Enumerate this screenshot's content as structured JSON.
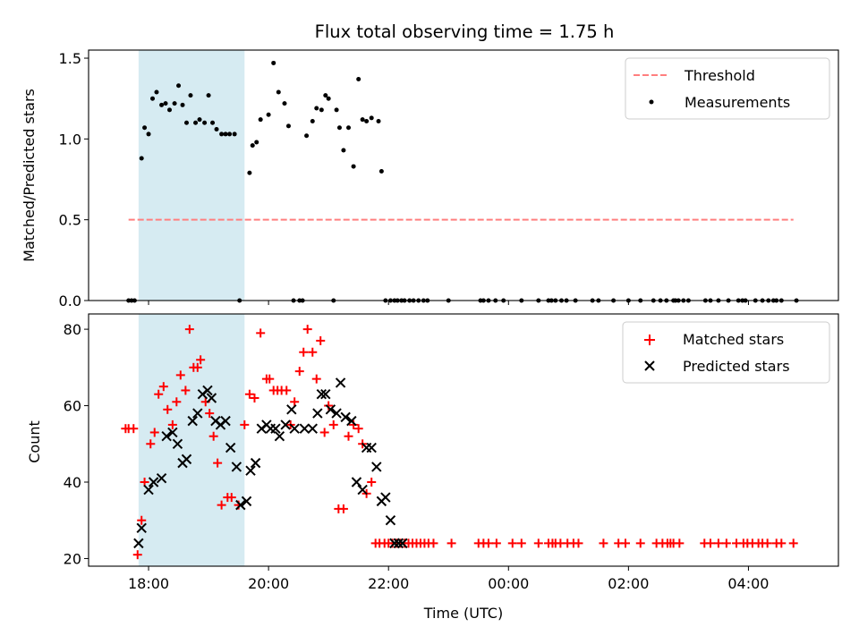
{
  "chart_data": [
    {
      "type": "scatter",
      "title": "Flux total observing time = 1.75 h",
      "xlabel": "",
      "ylabel": "Matched/Predicted stars",
      "xlim": [
        "17:00",
        "05:30"
      ],
      "ylim": [
        0,
        1.55
      ],
      "x_tick_labels": [
        "18:00",
        "20:00",
        "22:00",
        "00:00",
        "02:00",
        "04:00"
      ],
      "show_x_tick_labels": false,
      "y_ticks": [
        0.0,
        0.5,
        1.0,
        1.5
      ],
      "y_tick_labels": [
        "0.0",
        "0.5",
        "1.0",
        "1.5"
      ],
      "grid": false,
      "legend": "top-right",
      "shaded_span": {
        "start": "17:50",
        "end": "19:36",
        "color": "#add8e6"
      },
      "threshold": {
        "name": "Threshold",
        "value": 0.5,
        "from": "17:40",
        "to": "04:45",
        "color": "#ff7f7f",
        "style": "dashed"
      },
      "series": [
        {
          "name": "Measurements",
          "color": "#000000",
          "marker": "dot",
          "x": [
            "17:40",
            "17:43",
            "17:46",
            "17:53",
            "17:56",
            "18:00",
            "18:04",
            "18:08",
            "18:13",
            "18:17",
            "18:21",
            "18:26",
            "18:30",
            "18:34",
            "18:38",
            "18:42",
            "18:47",
            "18:51",
            "18:56",
            "19:00",
            "19:04",
            "19:08",
            "19:13",
            "19:17",
            "19:21",
            "19:26",
            "19:31",
            "19:41",
            "19:44",
            "19:48",
            "19:52",
            "20:00",
            "20:05",
            "20:10",
            "20:16",
            "20:20",
            "20:25",
            "20:31",
            "20:34",
            "20:38",
            "20:44",
            "20:48",
            "20:53",
            "20:57",
            "21:00",
            "21:05",
            "21:08",
            "21:11",
            "21:15",
            "21:20",
            "21:25",
            "21:30",
            "21:34",
            "21:38",
            "21:43",
            "21:50",
            "21:53",
            "21:57",
            "22:02",
            "22:06",
            "22:09",
            "22:13",
            "22:16",
            "22:21",
            "22:25",
            "22:30",
            "22:35",
            "22:39",
            "23:00",
            "23:32",
            "23:35",
            "23:40",
            "23:47",
            "23:55",
            "00:13",
            "00:30",
            "00:40",
            "00:43",
            "00:47",
            "00:53",
            "00:58",
            "01:07",
            "01:24",
            "01:30",
            "01:45",
            "02:00",
            "02:12",
            "02:25",
            "02:32",
            "02:38",
            "02:45",
            "02:47",
            "02:50",
            "02:55",
            "03:00",
            "03:17",
            "03:22",
            "03:30",
            "03:40",
            "03:50",
            "03:54",
            "03:57",
            "04:07",
            "04:14",
            "04:20",
            "04:25",
            "04:28",
            "04:33",
            "04:48"
          ],
          "y": [
            0,
            0,
            0,
            0.88,
            1.07,
            1.03,
            1.25,
            1.29,
            1.21,
            1.22,
            1.18,
            1.22,
            1.33,
            1.21,
            1.1,
            1.27,
            1.1,
            1.12,
            1.1,
            1.27,
            1.1,
            1.06,
            1.03,
            1.03,
            1.03,
            1.03,
            0,
            0.79,
            0.96,
            0.98,
            1.12,
            1.15,
            1.47,
            1.29,
            1.22,
            1.08,
            0,
            0,
            0,
            1.02,
            1.11,
            1.19,
            1.18,
            1.27,
            1.25,
            0,
            1.18,
            1.07,
            0.93,
            1.07,
            0.83,
            1.37,
            1.12,
            1.11,
            1.13,
            1.11,
            0.8,
            0,
            0,
            0,
            0,
            0,
            0,
            0,
            0,
            0,
            0,
            0,
            0,
            0,
            0,
            0,
            0,
            0,
            0,
            0,
            0,
            0,
            0,
            0,
            0,
            0,
            0,
            0,
            0,
            0,
            0,
            0,
            0,
            0,
            0,
            0,
            0,
            0,
            0,
            0,
            0,
            0,
            0,
            0,
            0,
            0,
            0,
            0,
            0,
            0,
            0,
            0,
            0
          ]
        }
      ]
    },
    {
      "type": "scatter",
      "title": "",
      "xlabel": "Time (UTC)",
      "ylabel": "Count",
      "xlim": [
        "17:00",
        "05:30"
      ],
      "ylim": [
        18,
        84
      ],
      "x_tick_labels": [
        "18:00",
        "20:00",
        "22:00",
        "00:00",
        "02:00",
        "04:00"
      ],
      "show_x_tick_labels": true,
      "y_ticks": [
        20,
        40,
        60,
        80
      ],
      "y_tick_labels": [
        "20",
        "40",
        "60",
        "80"
      ],
      "grid": false,
      "legend": "top-right",
      "shaded_span": {
        "start": "17:50",
        "end": "19:36",
        "color": "#add8e6"
      },
      "series": [
        {
          "name": "Matched stars",
          "color": "#ff0000",
          "marker": "plus",
          "x": [
            "17:37",
            "17:40",
            "17:45",
            "17:49",
            "17:53",
            "17:56",
            "18:02",
            "18:06",
            "18:10",
            "18:15",
            "18:19",
            "18:24",
            "18:28",
            "18:32",
            "18:37",
            "18:41",
            "18:45",
            "18:49",
            "18:52",
            "18:57",
            "19:01",
            "19:05",
            "19:09",
            "19:13",
            "19:19",
            "19:23",
            "19:30",
            "19:36",
            "19:41",
            "19:46",
            "19:52",
            "19:58",
            "20:01",
            "20:05",
            "20:09",
            "20:13",
            "20:18",
            "20:22",
            "20:26",
            "20:31",
            "20:35",
            "20:39",
            "20:44",
            "20:48",
            "20:52",
            "20:56",
            "21:00",
            "21:05",
            "21:10",
            "21:15",
            "21:20",
            "21:25",
            "21:30",
            "21:34",
            "21:38",
            "21:43",
            "21:47",
            "21:51",
            "21:56",
            "22:00",
            "22:04",
            "22:08",
            "22:12",
            "22:16",
            "22:20",
            "22:24",
            "22:28",
            "22:32",
            "22:36",
            "22:40",
            "22:45",
            "23:03",
            "23:30",
            "23:35",
            "23:40",
            "23:48",
            "00:04",
            "00:13",
            "00:30",
            "00:40",
            "00:44",
            "00:47",
            "00:52",
            "00:59",
            "01:05",
            "01:10",
            "01:35",
            "01:50",
            "01:57",
            "02:12",
            "02:28",
            "02:34",
            "02:39",
            "02:42",
            "02:45",
            "02:51",
            "03:16",
            "03:22",
            "03:30",
            "03:38",
            "03:48",
            "03:55",
            "03:59",
            "04:04",
            "04:10",
            "04:14",
            "04:19",
            "04:28",
            "04:33",
            "04:45"
          ],
          "y": [
            54,
            54,
            54,
            21,
            30,
            40,
            50,
            53,
            63,
            65,
            59,
            55,
            61,
            68,
            64,
            80,
            70,
            70,
            72,
            61,
            58,
            52,
            45,
            34,
            36,
            36,
            34,
            55,
            63,
            62,
            79,
            67,
            67,
            64,
            64,
            64,
            64,
            55,
            61,
            69,
            74,
            80,
            74,
            67,
            77,
            53,
            60,
            55,
            33,
            33,
            52,
            55,
            54,
            50,
            37,
            40,
            24,
            24,
            24,
            24,
            24,
            24,
            24,
            24,
            24,
            24,
            24,
            24,
            24,
            24,
            24,
            24,
            24,
            24,
            24,
            24,
            24,
            24,
            24,
            24,
            24,
            24,
            24,
            24,
            24,
            24,
            24,
            24,
            24,
            24,
            24,
            24,
            24,
            24,
            24,
            24,
            24,
            24,
            24,
            24,
            24,
            24,
            24,
            24,
            24,
            24,
            24,
            24,
            24,
            24
          ]
        },
        {
          "name": "Predicted stars",
          "color": "#000000",
          "marker": "x",
          "x": [
            "17:50",
            "17:53",
            "18:00",
            "18:05",
            "18:13",
            "18:18",
            "18:24",
            "18:29",
            "18:34",
            "18:38",
            "18:44",
            "18:49",
            "18:54",
            "18:59",
            "19:03",
            "19:07",
            "19:12",
            "19:17",
            "19:22",
            "19:28",
            "19:32",
            "19:38",
            "19:42",
            "19:47",
            "19:53",
            "19:58",
            "20:02",
            "20:07",
            "20:11",
            "20:17",
            "20:23",
            "20:26",
            "20:36",
            "20:44",
            "20:49",
            "20:53",
            "20:57",
            "21:02",
            "21:08",
            "21:12",
            "21:17",
            "21:23",
            "21:28",
            "21:34",
            "21:38",
            "21:43",
            "21:48",
            "21:53",
            "21:57",
            "22:02",
            "22:06",
            "22:10",
            "22:14"
          ],
          "y": [
            24,
            28,
            38,
            40,
            41,
            52,
            53,
            50,
            45,
            46,
            56,
            58,
            63,
            64,
            62,
            56,
            55,
            56,
            49,
            44,
            34,
            35,
            43,
            45,
            54,
            55,
            54,
            54,
            52,
            55,
            59,
            54,
            54,
            54,
            58,
            63,
            63,
            59,
            58,
            66,
            57,
            56,
            40,
            38,
            49,
            49,
            44,
            35,
            36,
            30,
            24,
            24,
            24
          ]
        }
      ]
    }
  ]
}
